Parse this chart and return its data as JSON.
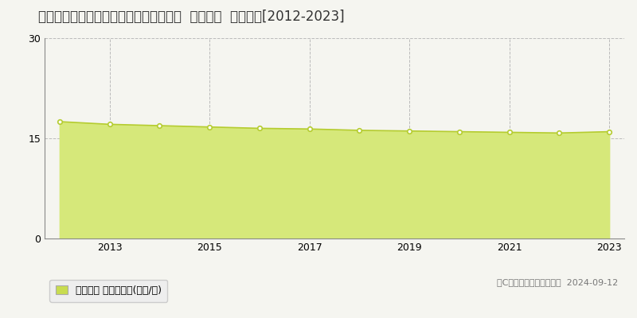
{
  "title": "北海道釧路市北大通１３丁目２番１６外  地価公示  地価推移[2012-2023]",
  "years": [
    2012,
    2013,
    2014,
    2015,
    2016,
    2017,
    2018,
    2019,
    2020,
    2021,
    2022,
    2023
  ],
  "values": [
    17.5,
    17.1,
    16.9,
    16.7,
    16.5,
    16.4,
    16.2,
    16.1,
    16.0,
    15.9,
    15.8,
    16.0
  ],
  "line_color": "#b5cc30",
  "fill_color": "#d6e87a",
  "fill_alpha": 1.0,
  "marker_face": "#ffffff",
  "marker_edge": "#b5cc30",
  "ylim": [
    0,
    30
  ],
  "yticks": [
    0,
    15,
    30
  ],
  "bg_color": "#f5f5f0",
  "plot_bg_color": "#f5f5f0",
  "grid_color": "#bbbbbb",
  "legend_label": "地価公示 平均坪単価(万円/坪)",
  "legend_color": "#c8dc50",
  "copyright_text": "（C）土地価格ドットコム  2024-09-12",
  "title_fontsize": 12,
  "tick_fontsize": 9,
  "legend_fontsize": 9
}
